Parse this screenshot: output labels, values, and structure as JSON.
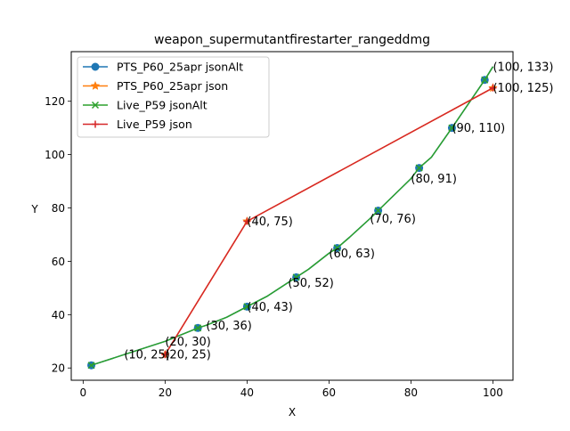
{
  "chart_data": {
    "type": "line",
    "title": "weapon_supermutantfirestarter_rangeddmg",
    "xlabel": "X",
    "ylabel": "Y",
    "xlim": [
      -2.9,
      104.9
    ],
    "ylim": [
      15.4,
      138.6
    ],
    "xticks": [
      0,
      20,
      40,
      60,
      80,
      100
    ],
    "yticks": [
      20,
      40,
      60,
      80,
      100,
      120
    ],
    "grid": false,
    "legend_position": "top-left",
    "series": [
      {
        "name": "PTS_P60_25apr jsonAlt",
        "color": "#1f77b4",
        "marker": "circle",
        "x": [
          2,
          10,
          20,
          28,
          30,
          35,
          40,
          45,
          50,
          52,
          55,
          60,
          62,
          65,
          70,
          72,
          80,
          82,
          85,
          90,
          98,
          100
        ],
        "y": [
          21,
          25,
          30,
          35,
          36,
          39,
          43,
          47,
          52,
          54,
          57,
          63,
          65,
          69,
          76,
          79,
          91,
          95,
          99,
          110,
          128,
          133
        ],
        "marker_x": [
          2,
          28,
          40,
          52,
          62,
          72,
          82,
          90,
          98
        ],
        "marker_y": [
          21,
          35,
          43,
          54,
          65,
          79,
          95,
          110,
          128
        ]
      },
      {
        "name": "PTS_P60_25apr json",
        "color": "#ff7f0e",
        "marker": "star",
        "x": [
          20,
          40,
          100
        ],
        "y": [
          25,
          75,
          125
        ]
      },
      {
        "name": "Live_P59 jsonAlt",
        "color": "#2ca02c",
        "marker": "x",
        "x": [
          2,
          10,
          20,
          28,
          30,
          35,
          40,
          45,
          50,
          52,
          55,
          60,
          62,
          65,
          70,
          72,
          80,
          82,
          85,
          90,
          98,
          100
        ],
        "y": [
          21,
          25,
          30,
          35,
          36,
          39,
          43,
          47,
          52,
          54,
          57,
          63,
          65,
          69,
          76,
          79,
          91,
          95,
          99,
          110,
          128,
          133
        ],
        "marker_x": [
          2,
          28,
          40,
          52,
          62,
          72,
          82,
          90,
          98
        ],
        "marker_y": [
          21,
          35,
          43,
          54,
          65,
          79,
          95,
          110,
          128
        ]
      },
      {
        "name": "Live_P59 json",
        "color": "#d62728",
        "marker": "plus",
        "x": [
          20,
          40,
          100
        ],
        "y": [
          25,
          75,
          125
        ]
      }
    ],
    "annotations": [
      {
        "x": 10,
        "y": 25,
        "text": "(10, 25)"
      },
      {
        "x": 20,
        "y": 25,
        "text": "(20, 25)"
      },
      {
        "x": 20,
        "y": 30,
        "text": "(20, 30)"
      },
      {
        "x": 30,
        "y": 36,
        "text": "(30, 36)"
      },
      {
        "x": 40,
        "y": 43,
        "text": "(40, 43)"
      },
      {
        "x": 40,
        "y": 75,
        "text": "(40, 75)"
      },
      {
        "x": 50,
        "y": 52,
        "text": "(50, 52)"
      },
      {
        "x": 60,
        "y": 63,
        "text": "(60, 63)"
      },
      {
        "x": 70,
        "y": 76,
        "text": "(70, 76)"
      },
      {
        "x": 80,
        "y": 91,
        "text": "(80, 91)"
      },
      {
        "x": 90,
        "y": 110,
        "text": "(90, 110)"
      },
      {
        "x": 100,
        "y": 125,
        "text": "(100, 125)"
      },
      {
        "x": 100,
        "y": 133,
        "text": "(100, 133)"
      }
    ]
  }
}
